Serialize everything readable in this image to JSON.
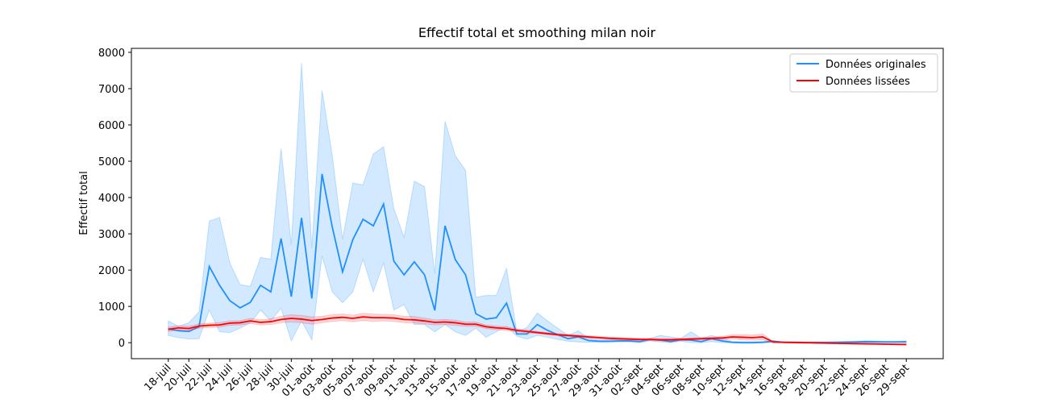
{
  "chart_data": {
    "type": "line",
    "title": "Effectif total et smoothing milan noir",
    "y_label": "Effectif total",
    "categories": [
      "18-juil",
      null,
      "20-juil",
      null,
      "22-juil",
      null,
      "24-juil",
      null,
      "26-juil",
      null,
      "28-juil",
      null,
      "30-juil",
      null,
      "01-août",
      null,
      "03-août",
      null,
      "05-août",
      null,
      "07-août",
      null,
      "09-août",
      null,
      "11-août",
      null,
      "13-août",
      null,
      "15-août",
      null,
      "17-août",
      null,
      "19-août",
      null,
      "21-août",
      null,
      "23-août",
      null,
      "25-août",
      null,
      "27-août",
      null,
      "29-août",
      null,
      "31-août",
      null,
      "02-sept",
      null,
      "04-sept",
      null,
      "06-sept",
      null,
      "08-sept",
      null,
      "10-sept",
      null,
      "12-sept",
      null,
      "14-sept",
      null,
      "16-sept",
      null,
      "18-sept",
      null,
      "20-sept",
      null,
      "22-sept",
      null,
      "24-sept",
      null,
      "26-sept",
      null,
      "29-sept"
    ],
    "xlim": [
      -3.6,
      75.6
    ],
    "ylim": [
      -440,
      8110
    ],
    "yticks": [
      0,
      1000,
      2000,
      3000,
      4000,
      5000,
      6000,
      7000,
      8000
    ],
    "legend": "upper right",
    "grid": false,
    "series": [
      {
        "name": "Données originales",
        "color": "#1e90ff",
        "band_color": "#1e90ff",
        "values": [
          380,
          330,
          310,
          440,
          2100,
          1580,
          1160,
          960,
          1110,
          1580,
          1400,
          2870,
          1270,
          3440,
          1220,
          4650,
          3180,
          1950,
          2840,
          3400,
          3220,
          3820,
          2250,
          1870,
          2230,
          1870,
          890,
          3220,
          2290,
          1870,
          800,
          650,
          690,
          1090,
          240,
          240,
          500,
          340,
          220,
          110,
          160,
          60,
          40,
          40,
          50,
          50,
          30,
          90,
          70,
          30,
          80,
          70,
          30,
          110,
          50,
          10,
          0,
          0,
          10,
          40,
          10,
          10,
          5,
          5,
          5,
          10,
          15,
          20,
          30,
          25,
          20,
          20,
          25
        ],
        "upper": [
          600,
          450,
          550,
          850,
          3350,
          3450,
          2200,
          1600,
          1550,
          2350,
          2300,
          5350,
          2700,
          7700,
          2600,
          6950,
          5150,
          2850,
          4400,
          4350,
          5200,
          5400,
          3700,
          2900,
          4450,
          4300,
          1900,
          6100,
          5150,
          4750,
          1250,
          1300,
          1300,
          2050,
          300,
          420,
          820,
          600,
          400,
          200,
          330,
          120,
          80,
          80,
          90,
          90,
          70,
          120,
          200,
          160,
          120,
          300,
          120,
          200,
          120,
          40,
          30,
          30,
          40,
          60,
          30,
          30,
          25,
          25,
          25,
          30,
          35,
          40,
          50,
          45,
          40,
          40,
          45
        ],
        "lower": [
          200,
          140,
          100,
          110,
          900,
          300,
          280,
          400,
          550,
          900,
          600,
          950,
          50,
          600,
          80,
          2400,
          1400,
          1100,
          1400,
          2300,
          1400,
          2200,
          900,
          1050,
          500,
          500,
          300,
          500,
          300,
          200,
          400,
          150,
          300,
          450,
          180,
          100,
          200,
          150,
          90,
          40,
          20,
          10,
          10,
          10,
          20,
          20,
          0,
          50,
          20,
          0,
          40,
          0,
          0,
          30,
          0,
          0,
          0,
          0,
          0,
          0,
          0,
          0,
          0,
          0,
          0,
          0,
          0,
          0,
          0,
          0,
          0,
          0,
          0
        ]
      },
      {
        "name": "Données lissées",
        "color": "#ff0000",
        "band_color": "#ff4040",
        "values": [
          370,
          410,
          390,
          460,
          480,
          490,
          540,
          550,
          600,
          560,
          580,
          640,
          670,
          650,
          610,
          640,
          680,
          700,
          670,
          710,
          690,
          690,
          680,
          640,
          630,
          600,
          560,
          570,
          550,
          510,
          510,
          440,
          410,
          390,
          340,
          310,
          280,
          250,
          220,
          200,
          180,
          160,
          140,
          120,
          110,
          100,
          90,
          90,
          80,
          80,
          90,
          100,
          110,
          120,
          130,
          160,
          150,
          140,
          160,
          20,
          10,
          5,
          0,
          -5,
          -10,
          -15,
          -20,
          -25,
          -30,
          -35,
          -40,
          -45,
          -50
        ],
        "upper": [
          430,
          470,
          450,
          520,
          540,
          550,
          600,
          610,
          670,
          630,
          660,
          730,
          770,
          750,
          710,
          730,
          770,
          790,
          760,
          810,
          790,
          780,
          770,
          730,
          720,
          680,
          630,
          640,
          620,
          570,
          570,
          490,
          460,
          440,
          380,
          350,
          310,
          280,
          250,
          230,
          210,
          190,
          170,
          150,
          140,
          130,
          120,
          120,
          110,
          110,
          120,
          130,
          140,
          150,
          170,
          220,
          220,
          210,
          240,
          35,
          25,
          20,
          15,
          10,
          5,
          0,
          -5,
          -10,
          -15,
          -20,
          -25,
          -30,
          -35
        ],
        "lower": [
          310,
          350,
          330,
          400,
          420,
          430,
          480,
          490,
          530,
          490,
          500,
          550,
          570,
          550,
          510,
          550,
          590,
          610,
          580,
          610,
          590,
          600,
          590,
          550,
          540,
          520,
          490,
          500,
          480,
          450,
          450,
          390,
          360,
          340,
          300,
          270,
          250,
          220,
          190,
          170,
          150,
          130,
          110,
          90,
          80,
          70,
          60,
          60,
          50,
          50,
          60,
          70,
          80,
          90,
          90,
          100,
          80,
          70,
          80,
          5,
          -5,
          -10,
          -15,
          -20,
          -25,
          -30,
          -35,
          -40,
          -45,
          -50,
          -55,
          -60,
          -65
        ]
      }
    ]
  }
}
